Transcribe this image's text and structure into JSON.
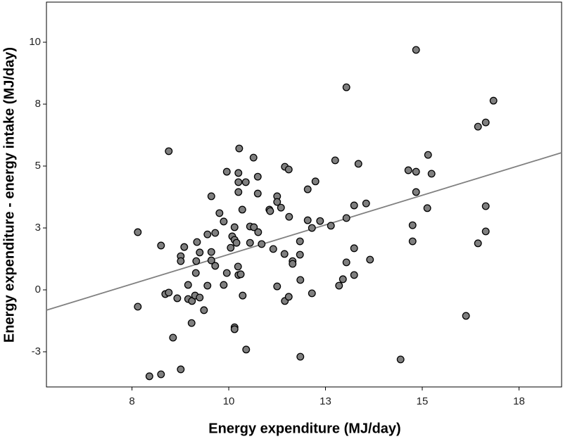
{
  "chart_data": {
    "type": "scatter",
    "x_label": "Energy expenditure (MJ/day)",
    "y_label": "Energy expenditure - energy intake (MJ/day)",
    "color": "#7f7f7f",
    "x": [
      7.65,
      7.65,
      7.95,
      8.25,
      8.25,
      8.45,
      8.36,
      8.45,
      8.56,
      8.67,
      8.76,
      8.76,
      8.76,
      8.85,
      8.95,
      8.95,
      9.04,
      9.05,
      9.13,
      9.15,
      9.16,
      9.18,
      9.25,
      9.25,
      9.36,
      9.45,
      9.45,
      9.55,
      9.55,
      9.55,
      9.65,
      9.65,
      9.76,
      9.87,
      9.87,
      9.95,
      9.95,
      10.05,
      10.09,
      10.15,
      10.15,
      10.15,
      10.15,
      10.2,
      10.27,
      10.25,
      10.25,
      10.25,
      10.24,
      10.25,
      10.31,
      10.35,
      10.36,
      10.44,
      10.45,
      10.55,
      10.55,
      10.64,
      10.65,
      10.75,
      10.75,
      10.76,
      10.85,
      11.05,
      11.07,
      11.15,
      11.25,
      11.25,
      11.25,
      11.35,
      11.44,
      11.45,
      11.45,
      11.55,
      11.55,
      11.56,
      11.65,
      11.65,
      11.84,
      11.84,
      11.85,
      11.85,
      12.04,
      12.04,
      12.15,
      12.15,
      12.24,
      12.36,
      12.64,
      12.75,
      12.85,
      12.95,
      13.04,
      13.04,
      13.04,
      13.24,
      13.24,
      13.24,
      13.35,
      13.55,
      13.65,
      14.44,
      14.64,
      14.75,
      14.75,
      14.84,
      14.84,
      14.84,
      15.13,
      15.15,
      15.24,
      16.13,
      16.44,
      16.44,
      16.64,
      16.64,
      16.64,
      16.84
    ],
    "values": [
      2.33,
      -0.68,
      -3.49,
      -3.41,
      1.79,
      5.6,
      -0.17,
      -0.11,
      -1.93,
      -0.34,
      -3.21,
      1.36,
      1.16,
      1.73,
      0.2,
      -0.37,
      -1.34,
      -0.45,
      -0.23,
      0.68,
      1.16,
      1.93,
      1.51,
      -0.31,
      -0.82,
      0.17,
      2.24,
      3.78,
      1.53,
      1.19,
      0.97,
      2.3,
      3.1,
      2.76,
      0.2,
      4.77,
      0.68,
      1.7,
      2.16,
      2.02,
      2.53,
      -1.51,
      -1.59,
      1.9,
      5.71,
      3.95,
      4.72,
      4.35,
      0.94,
      0.6,
      0.63,
      3.24,
      -0.23,
      4.35,
      -2.41,
      2.56,
      1.9,
      5.34,
      2.53,
      4.57,
      3.89,
      2.33,
      1.85,
      3.24,
      3.18,
      1.65,
      3.78,
      0.14,
      3.55,
      3.32,
      1.45,
      4.97,
      -0.45,
      4.86,
      -0.28,
      2.95,
      1.16,
      1.05,
      1.96,
      1.42,
      -2.7,
      0.4,
      4.06,
      2.81,
      -0.14,
      2.5,
      4.38,
      2.78,
      2.59,
      5.23,
      0.17,
      0.43,
      2.9,
      1.11,
      8.18,
      3.41,
      1.68,
      0.6,
      5.09,
      3.49,
      1.22,
      -2.81,
      4.83,
      2.61,
      1.96,
      3.95,
      4.77,
      9.69,
      3.3,
      5.45,
      4.69,
      -1.05,
      1.88,
      6.59,
      3.38,
      2.36,
      6.76,
      7.64
    ],
    "trend_line": {
      "x": [
        5.29,
        18.6
      ],
      "values": [
        -0.82,
        5.54
      ],
      "color": "#808080"
    },
    "xlim": [
      5.29,
      18.6
    ],
    "ylim": [
      -3.92,
      11.62
    ],
    "xticks": [
      {
        "value": 7.5,
        "label": "8"
      },
      10,
      {
        "value": 12.5,
        "label": "13"
      },
      15,
      {
        "value": 17.5,
        "label": "18"
      }
    ],
    "yticks": [
      {
        "value": -2.5,
        "label": "-3"
      },
      0,
      {
        "value": 2.5,
        "label": "3"
      },
      {
        "value": 5,
        "label": "5"
      },
      {
        "value": 7.5,
        "label": "8"
      },
      10
    ]
  }
}
